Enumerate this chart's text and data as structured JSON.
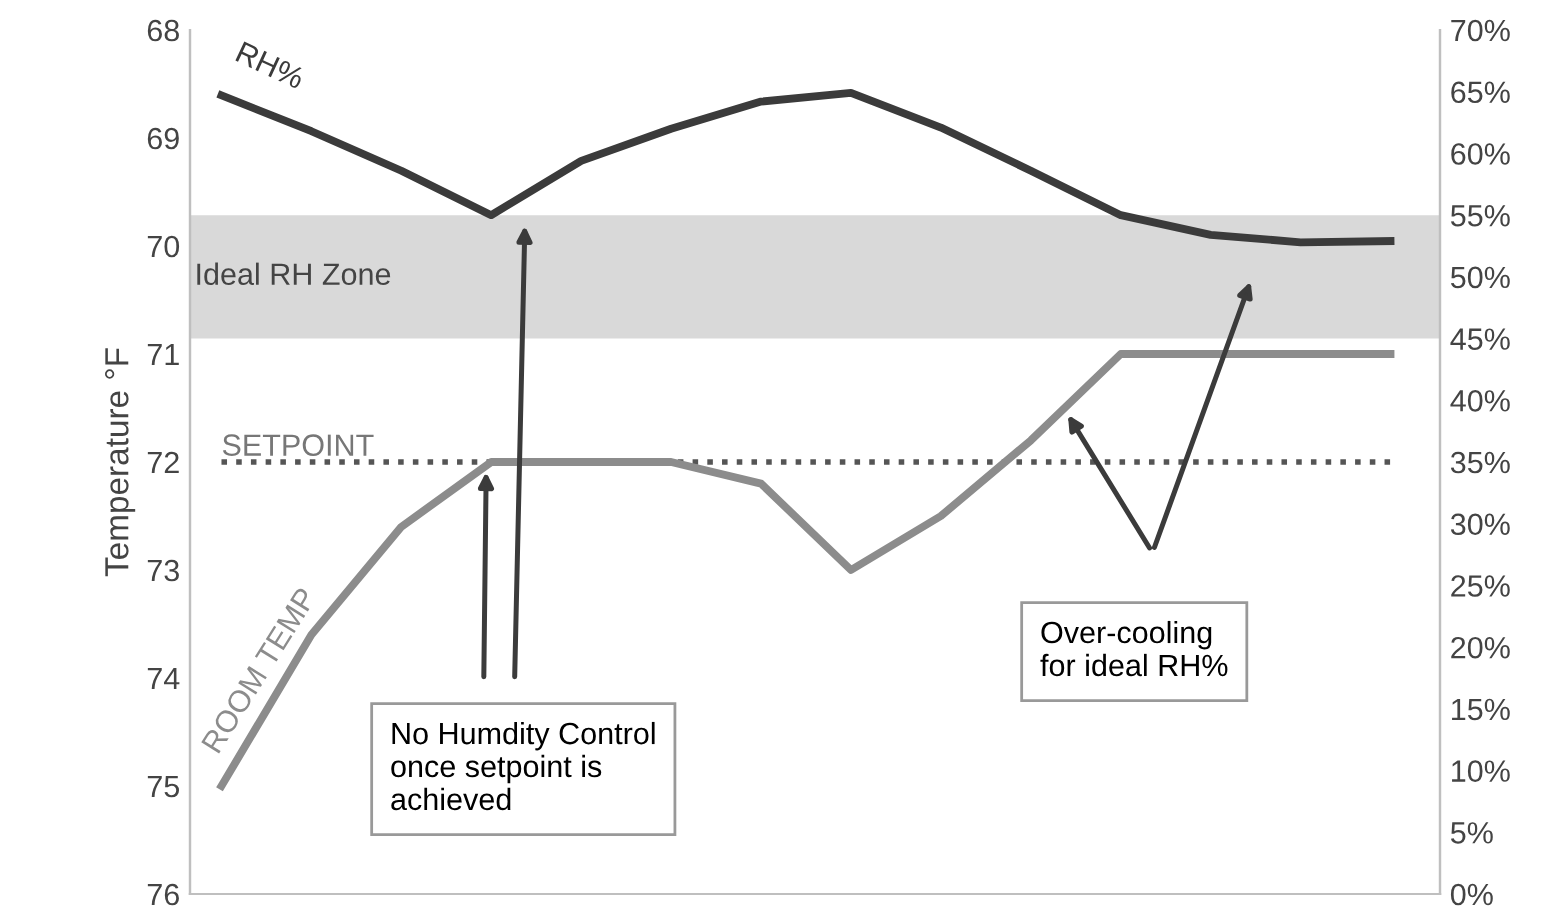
{
  "chart_data": {
    "type": "line",
    "ylabel": "Temperature °F",
    "categories": [
      null,
      null,
      null,
      null,
      null,
      null,
      null,
      null,
      null,
      null,
      null,
      null,
      null,
      null
    ],
    "series": [
      {
        "name": "RH%",
        "color": "#3b3b3b",
        "axis": "y2",
        "values": [
          64.7,
          61.8,
          58.6,
          55.0,
          59.4,
          62.0,
          64.2,
          64.9,
          62.1,
          58.6,
          55.0,
          53.4,
          52.8,
          52.9
        ]
      },
      {
        "name": "ROOM TEMP",
        "color": "#8c8c8c",
        "axis": "y",
        "values": [
          75.0,
          73.6,
          72.6,
          72.0,
          72.0,
          72.0,
          72.2,
          73.0,
          72.5,
          71.8,
          71.0,
          71.0,
          71.0,
          71.0
        ]
      }
    ],
    "ylim": [
      76,
      68
    ],
    "yticks": [
      68,
      69,
      70,
      71,
      72,
      73,
      74,
      75,
      76
    ],
    "y2lim": [
      0,
      70
    ],
    "y2ticks": [
      {
        "value": 0,
        "label": "0%"
      },
      {
        "value": 5,
        "label": "5%"
      },
      {
        "value": 10,
        "label": "10%"
      },
      {
        "value": 15,
        "label": "15%"
      },
      {
        "value": 20,
        "label": "20%"
      },
      {
        "value": 25,
        "label": "25%"
      },
      {
        "value": 30,
        "label": "30%"
      },
      {
        "value": 35,
        "label": "35%"
      },
      {
        "value": 40,
        "label": "40%"
      },
      {
        "value": 45,
        "label": "45%"
      },
      {
        "value": 50,
        "label": "50%"
      },
      {
        "value": 55,
        "label": "55%"
      },
      {
        "value": 60,
        "label": "60%"
      },
      {
        "value": 65,
        "label": "65%"
      },
      {
        "value": 70,
        "label": "70%"
      }
    ],
    "ref_lines": [
      {
        "axis": "y",
        "value": 72,
        "label": "SETPOINT",
        "color": "#555555",
        "line_style": "dotted"
      }
    ],
    "bands": [
      {
        "axis": "y2",
        "from": 45,
        "to": 55,
        "label": "Ideal RH Zone",
        "color": "#d9d9d9"
      }
    ],
    "annotations": [
      "No Humdity Control\nonce setpoint is\nachieved",
      "Over-cooling\nfor ideal RH%"
    ],
    "grid": false,
    "legend": false,
    "marker": "none",
    "line_style": "solid"
  }
}
